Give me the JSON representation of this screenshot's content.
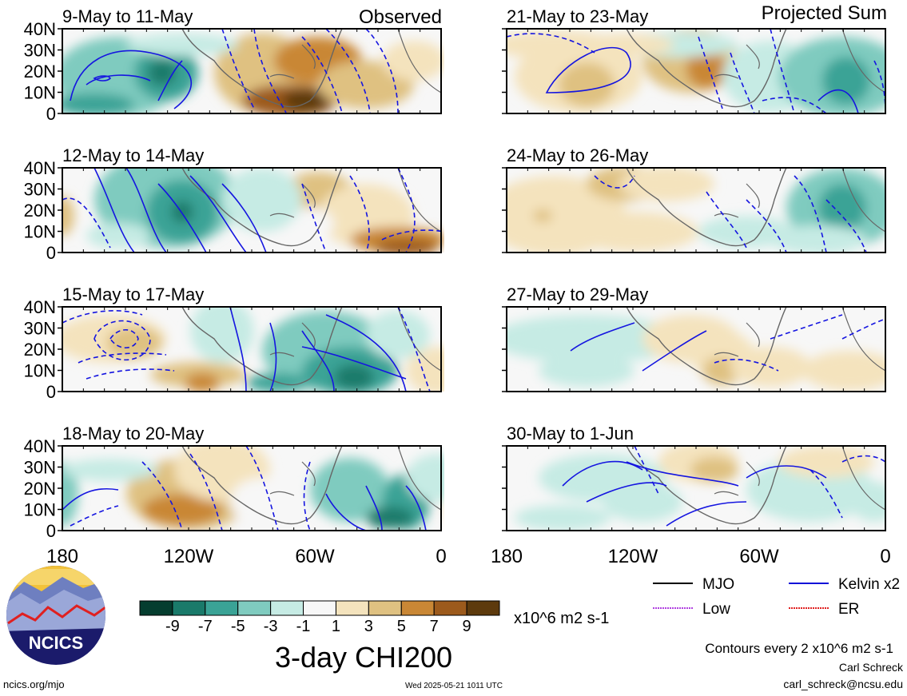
{
  "header": {
    "observed_label": "Observed",
    "projected_label": "Projected Sum"
  },
  "panels": [
    {
      "id": "p1",
      "title": "9-May to 11-May",
      "column": "observed",
      "row": 0
    },
    {
      "id": "p2",
      "title": "12-May to 14-May",
      "column": "observed",
      "row": 1
    },
    {
      "id": "p3",
      "title": "15-May to 17-May",
      "column": "observed",
      "row": 2
    },
    {
      "id": "p4",
      "title": "18-May to 20-May",
      "column": "observed",
      "row": 3
    },
    {
      "id": "p5",
      "title": "21-May to 23-May",
      "column": "projected",
      "row": 0
    },
    {
      "id": "p6",
      "title": "24-May to 26-May",
      "column": "projected",
      "row": 1
    },
    {
      "id": "p7",
      "title": "27-May to 29-May",
      "column": "projected",
      "row": 2
    },
    {
      "id": "p8",
      "title": "30-May to 1-Jun",
      "column": "projected",
      "row": 3
    }
  ],
  "lat_labels": [
    "40N",
    "30N",
    "20N",
    "10N",
    "0"
  ],
  "lon_labels": [
    "180",
    "120W",
    "60W",
    "0"
  ],
  "legend_lines": [
    {
      "label": "MJO",
      "color": "#000000"
    },
    {
      "label": "Kelvin x2",
      "color": "#1010d8"
    },
    {
      "label": "Low",
      "color": "#b040e0"
    },
    {
      "label": "ER",
      "color": "#e02020"
    }
  ],
  "colorbar": {
    "colors": [
      "#053d2f",
      "#1a7a6a",
      "#3aa396",
      "#7fcbbf",
      "#c6ebe4",
      "#f7f7f7",
      "#f4e3bd",
      "#dfc181",
      "#c98735",
      "#9c5a1c",
      "#5d3a0d"
    ],
    "tick_labels": [
      "-9",
      "-7",
      "-5",
      "-3",
      "-1",
      "1",
      "3",
      "5",
      "7",
      "9"
    ],
    "units": "x10^6 m2 s-1",
    "title": "3-day CHI200"
  },
  "contour_note": "Contours every 2 x10^6 m2 s-1",
  "logo": {
    "text": "NCICS"
  },
  "footer": {
    "left": "ncics.org/mjo",
    "center": "Wed 2025-05-21 1011 UTC",
    "author": "Carl Schreck",
    "email": "carl_schreck@ncsu.edu"
  }
}
